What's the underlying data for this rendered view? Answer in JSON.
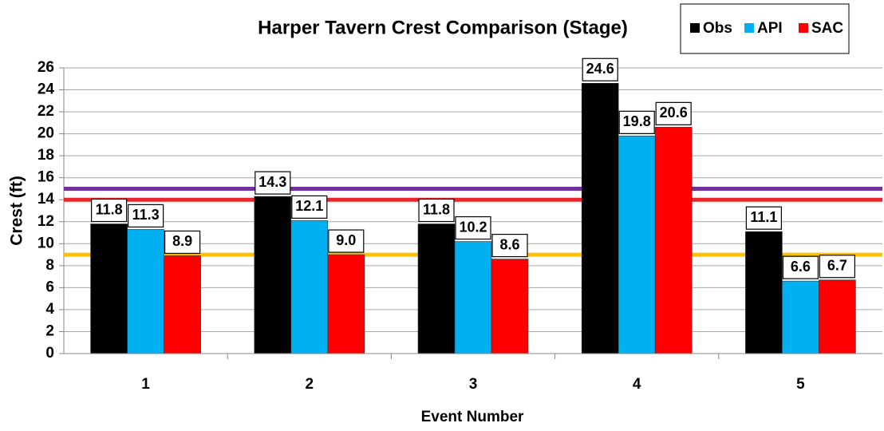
{
  "chart_data": {
    "type": "bar",
    "title": "Harper Tavern Crest Comparison (Stage)",
    "x_label": "Event Number",
    "y_label": "Crest (ft)",
    "categories": [
      "1",
      "2",
      "3",
      "4",
      "5"
    ],
    "series": [
      {
        "name": "Obs",
        "color": "#000000",
        "values": [
          11.8,
          14.3,
          11.8,
          24.6,
          11.1
        ],
        "value_labels": [
          "11.8",
          "14.3",
          "11.8",
          "24.6",
          "11.1"
        ]
      },
      {
        "name": "API",
        "color": "#00b0f0",
        "values": [
          11.3,
          12.1,
          10.2,
          19.8,
          6.6
        ],
        "value_labels": [
          "11.3",
          "12.1",
          "10.2",
          "19.8",
          "6.6"
        ]
      },
      {
        "name": "SAC",
        "color": "#ff0000",
        "values": [
          8.9,
          9.0,
          8.6,
          20.6,
          6.7
        ],
        "value_labels": [
          "8.9",
          "9.0",
          "8.6",
          "20.6",
          "6.7"
        ]
      }
    ],
    "reference_lines": [
      {
        "value": 15,
        "color": "#7030a0"
      },
      {
        "value": 14,
        "color": "#e8262b"
      },
      {
        "value": 9,
        "color": "#ffc000"
      }
    ],
    "ylim": [
      0,
      26
    ],
    "yticks": [
      0,
      2,
      4,
      6,
      8,
      10,
      12,
      14,
      16,
      18,
      20,
      22,
      24,
      26
    ],
    "grid": true,
    "legend": "top-right"
  }
}
